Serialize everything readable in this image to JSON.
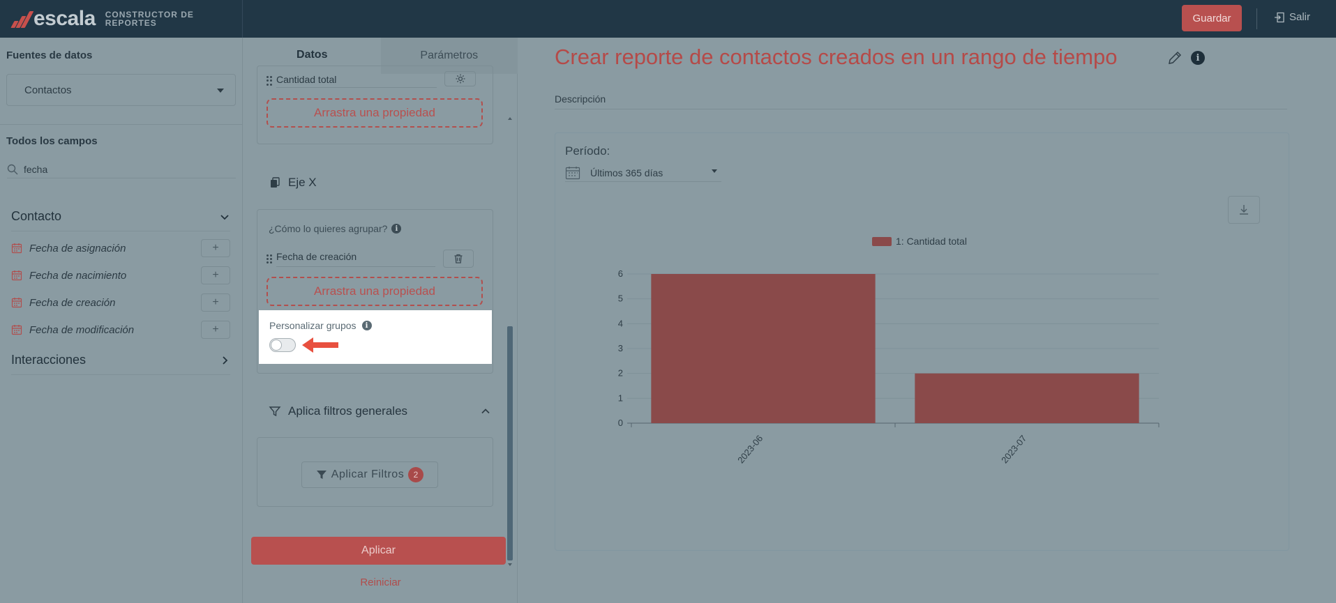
{
  "header": {
    "brand_word": "escala",
    "brand_tm": "™",
    "brand_sub_line1": "CONSTRUCTOR DE",
    "brand_sub_line2": "REPORTES",
    "save_label": "Guardar",
    "exit_label": "Salir"
  },
  "left_panel": {
    "sources_title": "Fuentes de datos",
    "source_selected": "Contactos",
    "all_fields_title": "Todos los campos",
    "search_value": "fecha",
    "groups": [
      {
        "label": "Contacto",
        "expanded": true,
        "fields": [
          {
            "label": "Fecha de asignación"
          },
          {
            "label": "Fecha de nacimiento"
          },
          {
            "label": "Fecha de creación"
          },
          {
            "label": "Fecha de modificación"
          }
        ]
      },
      {
        "label": "Interacciones",
        "expanded": false
      }
    ],
    "add_symbol": "+"
  },
  "middle_panel": {
    "tabs": [
      {
        "label": "Datos",
        "active": true
      },
      {
        "label": "Parámetros",
        "active": false
      }
    ],
    "y_axis_field": "Cantidad total",
    "drop_zone_label": "Arrastra una propiedad",
    "x_axis_title": "Eje X",
    "group_question": "¿Cómo lo quieres agrupar?",
    "x_axis_field": "Fecha de creación",
    "custom_groups_label": "Personalizar grupos",
    "custom_groups_enabled": false,
    "filters_title": "Aplica filtros generales",
    "apply_filters_label": "Aplicar Filtros",
    "filters_count": "2",
    "apply_label": "Aplicar",
    "reset_label": "Reiniciar"
  },
  "main": {
    "title": "Crear reporte de contactos creados en un rango de tiempo",
    "description_label": "Descripción",
    "period_label": "Período:",
    "period_value": "Últimos 365 días"
  },
  "chart_data": {
    "type": "bar",
    "categories": [
      "2023-06",
      "2023-07"
    ],
    "series": [
      {
        "name": "1: Cantidad total",
        "values": [
          6,
          2
        ],
        "color": "#8a4a4a"
      }
    ],
    "y_ticks": [
      "0",
      "1",
      "2",
      "3",
      "4",
      "5",
      "6"
    ],
    "ylim": [
      0,
      6
    ],
    "legend_position": "top-center",
    "grid": true
  },
  "colors": {
    "accent": "#b8504f",
    "topbar": "#213746",
    "bar": "#8a4a4a"
  }
}
